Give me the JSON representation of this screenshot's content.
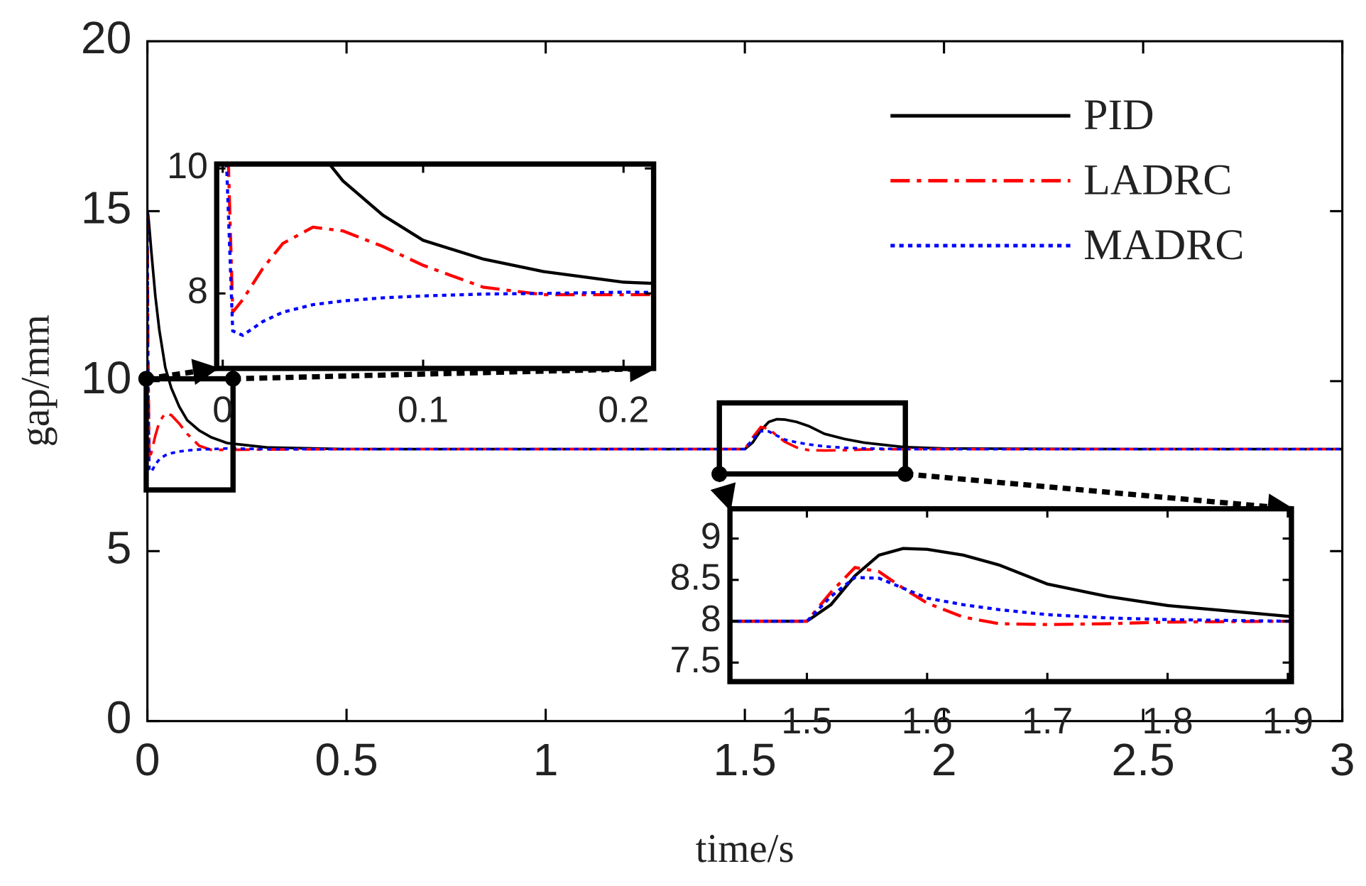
{
  "chart_data": [
    {
      "type": "line",
      "xlabel": "time/s",
      "ylabel": "gap/mm",
      "xlim": [
        0,
        3
      ],
      "ylim": [
        0,
        20
      ],
      "xticks": [
        0,
        0.5,
        1,
        1.5,
        2,
        2.5,
        3
      ],
      "yticks": [
        0,
        5,
        10,
        15,
        20
      ],
      "legend": "upper right",
      "x": [
        0,
        0.002,
        0.005,
        0.01,
        0.02,
        0.03,
        0.045,
        0.06,
        0.08,
        0.1,
        0.13,
        0.16,
        0.2,
        0.3,
        0.5,
        1,
        1.5,
        1.52,
        1.54,
        1.56,
        1.58,
        1.6,
        1.63,
        1.66,
        1.7,
        1.75,
        1.8,
        1.9,
        2,
        2.5,
        3
      ],
      "series": [
        {
          "name": "PID",
          "color": "#000000",
          "linestyle": "solid",
          "values": [
            15,
            14.9,
            14.5,
            13.8,
            12.5,
            11.5,
            10.4,
            9.8,
            9.25,
            8.85,
            8.55,
            8.35,
            8.18,
            8.05,
            8.0,
            8.0,
            8.0,
            8.2,
            8.55,
            8.8,
            8.88,
            8.87,
            8.8,
            8.68,
            8.45,
            8.3,
            8.19,
            8.06,
            8.02,
            8.0,
            8.0
          ]
        },
        {
          "name": "LADRC",
          "color": "#ff0000",
          "linestyle": "dashdot",
          "values": [
            15,
            11,
            7.7,
            7.9,
            8.4,
            8.8,
            9.06,
            9.0,
            8.75,
            8.45,
            8.1,
            7.98,
            7.98,
            7.99,
            8.0,
            8.0,
            8.0,
            8.35,
            8.65,
            8.6,
            8.4,
            8.22,
            8.05,
            7.97,
            7.96,
            7.97,
            7.99,
            8.0,
            8.0,
            8.0,
            8.0
          ]
        },
        {
          "name": "MADRC",
          "color": "#0000ff",
          "linestyle": "dotted",
          "values": [
            15,
            10,
            7.4,
            7.33,
            7.55,
            7.7,
            7.82,
            7.88,
            7.93,
            7.96,
            7.99,
            8.0,
            8.02,
            8.0,
            8.0,
            8.0,
            8.0,
            8.3,
            8.53,
            8.52,
            8.4,
            8.28,
            8.2,
            8.14,
            8.08,
            8.04,
            8.02,
            8.0,
            8.0,
            8.0,
            8.0
          ]
        }
      ]
    },
    {
      "type": "inset",
      "xlim": [
        -0.003,
        0.215
      ],
      "ylim": [
        6.8,
        10.07
      ],
      "xticks": [
        0,
        0.1,
        0.2
      ],
      "yticks": [
        8,
        10
      ]
    },
    {
      "type": "inset",
      "xlim": [
        1.436,
        1.903
      ],
      "ylim": [
        7.27,
        9.36
      ],
      "xticks": [
        1.5,
        1.6,
        1.7,
        1.8,
        1.9
      ],
      "yticks": [
        7.5,
        8,
        8.5,
        9
      ]
    }
  ]
}
